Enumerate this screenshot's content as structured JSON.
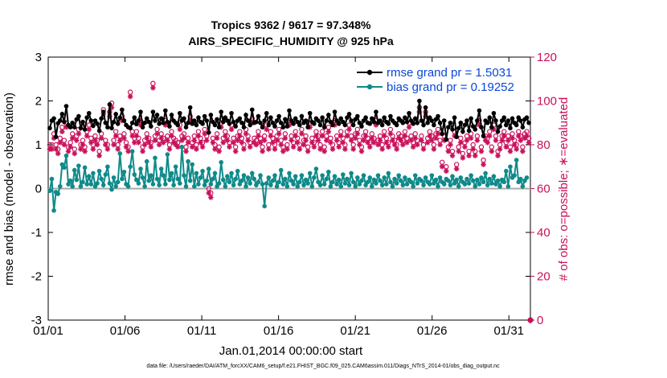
{
  "chart_data": {
    "type": "line",
    "title_line1": "Tropics 9362 / 9617 = 97.348%",
    "title_line2": "AIRS_SPECIFIC_HUMIDITY @ 925 hPa",
    "xlabel": "Jan.01,2014 00:00:00 start",
    "ylabel": "rmse and bias (model - observation)",
    "ylabel_right": "# of obs: o=possible; ∗=evaluated",
    "xlim": [
      0,
      31.4
    ],
    "ylim": [
      -3,
      3
    ],
    "ylim_right": [
      0,
      120
    ],
    "x_ticks": [
      0,
      5,
      10,
      15,
      20,
      25,
      30
    ],
    "x_tick_labels": [
      "01/01",
      "01/06",
      "01/11",
      "01/16",
      "01/21",
      "01/26",
      "01/31"
    ],
    "y_ticks": [
      -3,
      -2,
      -1,
      0,
      1,
      2,
      3
    ],
    "y_tick_labels": [
      "-3",
      "-2",
      "-1",
      "0",
      "1",
      "2",
      "3"
    ],
    "y_ticks_right": [
      0,
      20,
      40,
      60,
      80,
      100,
      120
    ],
    "y_tick_labels_right": [
      "0",
      "20",
      "40",
      "60",
      "80",
      "100",
      "120"
    ],
    "legend": [
      "rmse grand pr = 1.5031",
      "bias grand pr = 0.19252"
    ],
    "legend_position": "top-right",
    "series": [
      {
        "name": "rmse",
        "color": "#000000",
        "values": [
          1.38,
          1.55,
          1.6,
          1.18,
          1.49,
          1.55,
          1.7,
          1.52,
          1.88,
          1.45,
          1.4,
          1.5,
          1.4,
          1.58,
          1.65,
          1.38,
          1.52,
          1.35,
          1.62,
          1.72,
          1.55,
          1.43,
          1.55,
          1.48,
          1.32,
          1.6,
          1.75,
          1.5,
          1.4,
          1.92,
          1.38,
          1.52,
          1.7,
          1.48,
          1.62,
          1.8,
          1.55,
          1.45,
          1.4,
          1.38,
          1.5,
          1.62,
          1.47,
          1.55,
          1.75,
          1.4,
          1.5,
          1.6,
          1.52,
          1.42,
          1.75,
          1.55,
          1.68,
          1.48,
          1.6,
          1.5,
          1.78,
          1.52,
          1.42,
          1.68,
          1.55,
          1.5,
          1.45,
          1.72,
          1.55,
          1.6,
          1.4,
          1.5,
          1.85,
          1.48,
          1.55,
          1.45,
          1.62,
          1.52,
          1.48,
          1.65,
          1.55,
          1.28,
          1.68,
          1.52,
          1.45,
          1.58,
          1.4,
          1.75,
          1.52,
          1.62,
          1.55,
          1.48,
          1.72,
          1.52,
          1.42,
          1.55,
          1.6,
          1.5,
          1.4,
          1.68,
          1.55,
          1.45,
          1.8,
          1.5,
          1.52,
          1.65,
          1.5,
          1.4,
          1.55,
          1.72,
          1.45,
          1.62,
          1.5,
          1.42,
          1.55,
          1.65,
          1.5,
          1.4,
          1.58,
          1.42,
          1.78,
          1.55,
          1.48,
          1.6,
          1.52,
          1.45,
          1.65,
          1.5,
          1.55,
          1.4,
          1.72,
          1.52,
          1.48,
          1.6,
          1.55,
          1.45,
          1.62,
          1.4,
          1.55,
          1.68,
          1.52,
          1.45,
          1.75,
          1.55,
          1.48,
          1.6,
          1.52,
          1.45,
          1.62,
          1.7,
          1.55,
          1.45,
          1.58,
          1.65,
          1.5,
          1.42,
          1.55,
          1.62,
          1.5,
          1.48,
          1.6,
          1.52,
          1.75,
          1.5,
          1.55,
          1.45,
          1.62,
          1.52,
          1.48,
          1.65,
          1.55,
          1.5,
          1.45,
          1.6,
          1.55,
          1.5,
          1.62,
          1.52,
          1.72,
          1.55,
          1.48,
          1.6,
          1.5,
          2.0,
          1.55,
          1.45,
          1.85,
          1.5,
          1.62,
          1.55,
          1.45,
          1.58,
          1.65,
          1.5,
          1.25,
          1.55,
          1.12,
          1.4,
          1.5,
          1.35,
          1.62,
          1.18,
          1.38,
          1.5,
          1.3,
          1.45,
          1.55,
          1.32,
          1.6,
          1.42,
          1.35,
          1.55,
          1.78,
          1.4,
          1.2,
          1.55,
          1.5,
          1.62,
          1.4,
          1.72,
          1.55,
          1.3,
          1.42,
          1.55,
          1.62,
          1.45,
          1.55,
          1.38,
          1.6,
          1.5,
          1.45,
          1.62,
          1.55,
          1.4,
          1.58,
          1.62,
          1.5
        ]
      },
      {
        "name": "bias",
        "color": "#0f8a8a",
        "values": [
          -0.05,
          0.22,
          -0.5,
          -0.08,
          -0.12,
          0.05,
          0.55,
          0.48,
          0.75,
          0.1,
          0.18,
          0.05,
          0.42,
          0.2,
          0.52,
          0.05,
          0.15,
          0.48,
          0.1,
          0.28,
          0.1,
          0.35,
          0.05,
          0.12,
          0.4,
          0.22,
          0.08,
          0.32,
          0.5,
          0.12,
          -0.02,
          0.25,
          0.05,
          0.15,
          0.8,
          0.22,
          0.38,
          0.1,
          0.05,
          0.5,
          0.85,
          0.32,
          0.2,
          0.12,
          0.45,
          0.25,
          0.05,
          0.62,
          0.18,
          0.3,
          0.1,
          0.7,
          0.22,
          0.08,
          0.45,
          0.3,
          0.1,
          0.78,
          0.2,
          0.35,
          0.08,
          0.5,
          0.22,
          0.12,
          0.95,
          0.3,
          0.05,
          0.62,
          0.18,
          0.55,
          0.05,
          0.35,
          0.1,
          0.25,
          0.4,
          0.08,
          0.18,
          0.45,
          0.1,
          0.22,
          0.35,
          0.05,
          0.12,
          0.6,
          0.2,
          0.05,
          0.28,
          0.15,
          0.35,
          0.08,
          0.22,
          0.4,
          0.1,
          0.18,
          0.3,
          0.05,
          0.25,
          0.12,
          0.35,
          0.22,
          0.08,
          0.15,
          0.3,
          0.1,
          -0.4,
          0.12,
          0.25,
          0.08,
          0.18,
          0.3,
          0.05,
          0.15,
          0.42,
          0.1,
          0.22,
          0.05,
          0.35,
          0.18,
          0.1,
          0.28,
          0.05,
          0.15,
          0.3,
          0.08,
          0.2,
          0.12,
          0.35,
          0.05,
          0.25,
          0.45,
          0.15,
          0.08,
          0.3,
          0.1,
          0.22,
          0.38,
          0.05,
          0.15,
          0.28,
          0.1,
          0.2,
          0.05,
          0.32,
          0.12,
          0.22,
          0.08,
          0.35,
          0.15,
          0.05,
          0.25,
          0.1,
          0.18,
          0.3,
          0.08,
          0.15,
          0.25,
          0.05,
          0.2,
          0.12,
          0.3,
          0.18,
          0.08,
          0.25,
          0.1,
          0.35,
          0.15,
          0.05,
          0.22,
          0.12,
          0.3,
          0.18,
          0.08,
          0.25,
          0.1,
          0.2,
          0.15,
          0.05,
          0.3,
          0.12,
          0.22,
          0.18,
          0.08,
          0.25,
          0.15,
          0.1,
          0.3,
          0.12,
          0.2,
          0.05,
          0.25,
          0.15,
          0.1,
          0.22,
          0.18,
          0.08,
          0.28,
          0.12,
          0.2,
          0.05,
          0.25,
          0.15,
          0.1,
          0.22,
          0.12,
          0.3,
          0.18,
          0.05,
          0.2,
          0.1,
          0.25,
          0.15,
          0.35,
          0.08,
          0.22,
          0.12,
          0.28,
          0.1,
          0.18,
          0.05,
          0.2,
          0.15,
          0.4,
          0.05,
          0.5,
          0.25,
          0.3,
          0.65,
          0.15,
          0.22,
          0.05,
          0.18,
          0.25
        ]
      }
    ],
    "obs_possible": [
      80,
      80,
      85,
      80,
      78,
      83,
      88,
      82,
      90,
      79,
      81,
      85,
      78,
      84,
      87,
      80,
      82,
      79,
      86,
      89,
      83,
      80,
      84,
      82,
      77,
      85,
      96,
      82,
      80,
      95,
      99,
      82,
      86,
      80,
      84,
      93,
      85,
      81,
      79,
      104,
      86,
      83,
      86,
      83,
      91,
      79,
      82,
      85,
      83,
      81,
      108,
      84,
      87,
      82,
      85,
      83,
      91,
      84,
      80,
      86,
      83,
      82,
      81,
      89,
      84,
      85,
      79,
      83,
      93,
      81,
      84,
      80,
      86,
      83,
      81,
      87,
      84,
      60,
      58,
      83,
      80,
      85,
      79,
      90,
      83,
      86,
      84,
      81,
      89,
      83,
      79,
      84,
      86,
      83,
      80,
      87,
      84,
      81,
      92,
      83,
      82,
      86,
      83,
      79,
      84,
      89,
      80,
      86,
      83,
      80,
      84,
      87,
      82,
      79,
      85,
      80,
      91,
      84,
      81,
      86,
      83,
      80,
      87,
      82,
      84,
      79,
      90,
      83,
      81,
      86,
      84,
      80,
      86,
      79,
      84,
      88,
      83,
      80,
      91,
      84,
      81,
      86,
      83,
      80,
      86,
      89,
      84,
      80,
      85,
      87,
      82,
      79,
      84,
      86,
      83,
      81,
      85,
      83,
      91,
      82,
      84,
      80,
      86,
      83,
      81,
      87,
      84,
      82,
      80,
      85,
      84,
      82,
      86,
      83,
      90,
      84,
      81,
      85,
      82,
      97,
      84,
      80,
      95,
      83,
      86,
      84,
      80,
      85,
      87,
      82,
      72,
      84,
      70,
      79,
      82,
      77,
      86,
      71,
      79,
      83,
      76,
      81,
      84,
      77,
      85,
      80,
      77,
      84,
      91,
      79,
      73,
      84,
      83,
      86,
      79,
      89,
      84,
      77,
      80,
      84,
      86,
      81,
      84,
      79,
      85,
      82,
      80,
      86,
      84,
      79,
      85,
      86,
      83
    ],
    "obs_evaluated": [
      78,
      78,
      83,
      78,
      76,
      81,
      86,
      80,
      88,
      77,
      79,
      83,
      76,
      82,
      85,
      78,
      80,
      77,
      84,
      87,
      81,
      78,
      82,
      80,
      75,
      83,
      94,
      80,
      78,
      93,
      97,
      80,
      84,
      78,
      82,
      91,
      83,
      79,
      77,
      102,
      84,
      81,
      84,
      81,
      89,
      77,
      80,
      83,
      81,
      79,
      106,
      82,
      85,
      80,
      83,
      81,
      89,
      82,
      78,
      84,
      81,
      80,
      79,
      87,
      82,
      83,
      77,
      81,
      91,
      79,
      82,
      78,
      84,
      81,
      79,
      85,
      82,
      58,
      56,
      81,
      78,
      83,
      77,
      88,
      81,
      84,
      82,
      79,
      87,
      81,
      77,
      82,
      84,
      81,
      78,
      85,
      82,
      79,
      90,
      81,
      80,
      84,
      81,
      77,
      82,
      87,
      78,
      84,
      81,
      78,
      82,
      85,
      80,
      77,
      83,
      78,
      89,
      82,
      79,
      84,
      81,
      78,
      85,
      80,
      82,
      77,
      88,
      81,
      79,
      84,
      82,
      78,
      84,
      77,
      82,
      86,
      81,
      78,
      89,
      82,
      79,
      84,
      81,
      78,
      84,
      87,
      82,
      78,
      83,
      85,
      80,
      77,
      82,
      84,
      81,
      79,
      83,
      81,
      89,
      80,
      82,
      78,
      84,
      81,
      79,
      85,
      82,
      80,
      78,
      83,
      82,
      80,
      84,
      81,
      88,
      82,
      79,
      83,
      80,
      95,
      82,
      78,
      93,
      81,
      84,
      82,
      78,
      83,
      85,
      80,
      70,
      82,
      68,
      77,
      80,
      75,
      84,
      69,
      77,
      81,
      74,
      79,
      82,
      75,
      83,
      78,
      75,
      82,
      89,
      77,
      71,
      82,
      81,
      84,
      77,
      87,
      82,
      75,
      78,
      82,
      84,
      79,
      82,
      77,
      83,
      80,
      78,
      84,
      82,
      77,
      83,
      84,
      81
    ],
    "footnote": "data file: /Users/raeder/DAI/ATM_forcXX/CAM6_setup/f.e21.FHIST_BGC.f09_025.CAM6assim.011/Diags_NTrS_2014-01/obs_diag_output.nc"
  }
}
